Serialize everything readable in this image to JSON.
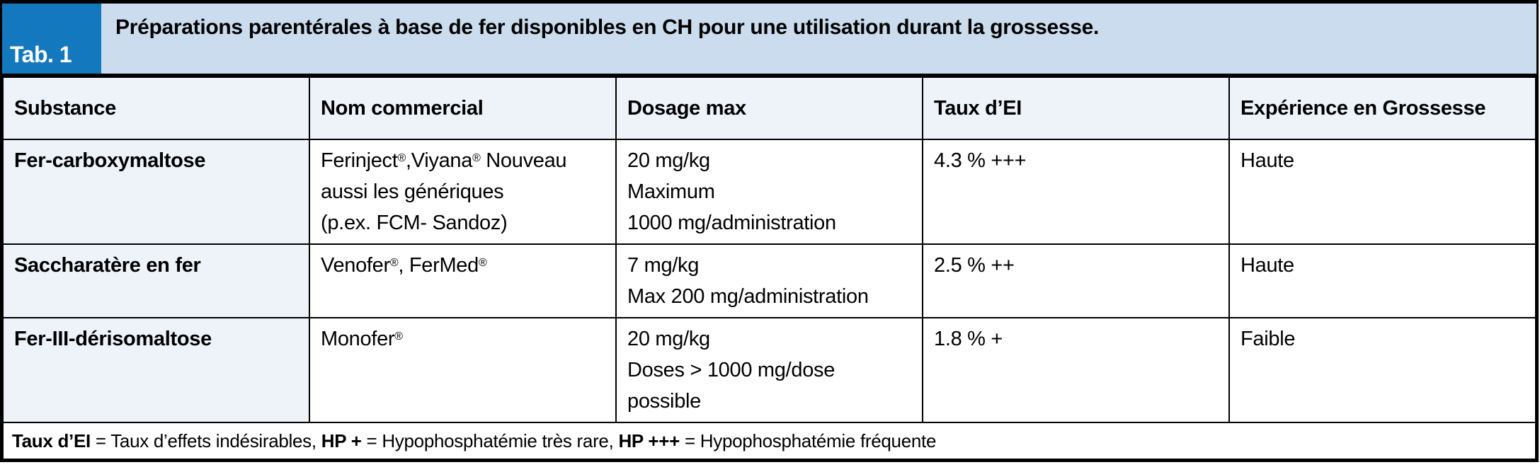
{
  "header": {
    "tab_label": "Tab. 1",
    "title": "Préparations parentérales à base de fer disponibles en CH pour une utilisation durant la grossesse."
  },
  "table": {
    "columns": [
      "Substance",
      "Nom commercial",
      "Dosage max",
      "Taux d’EI",
      "Expérience en Grossesse"
    ],
    "rows": [
      {
        "substance": "Fer-carboxymaltose",
        "nom_commercial": "Ferinject®,Viyana® Nouveau\naussi les génériques\n(p.ex. FCM- Sandoz)",
        "dosage_max": "20 mg/kg\nMaximum\n1000 mg/administration",
        "taux_ei": "4.3 % +++",
        "experience": "Haute"
      },
      {
        "substance": "Saccharatère en fer",
        "nom_commercial": "Venofer®, FerMed®",
        "dosage_max": "7 mg/kg\nMax 200 mg/administration",
        "taux_ei": "2.5 % ++",
        "experience": "Haute"
      },
      {
        "substance": "Fer-III-dérisomaltose",
        "nom_commercial": "Monofer®",
        "dosage_max": "20 mg/kg\nDoses > 1000 mg/dose\npossible",
        "taux_ei": "1.8 % +",
        "experience": "Faible"
      }
    ],
    "footnote": {
      "term1": "Taux d’EI",
      "def1": " = Taux d’effets indésirables, ",
      "term2": "HP +",
      "def2": " = Hypophosphatémie très rare, ",
      "term3": "HP +++",
      "def3": " = Hypophosphatémie fréquente"
    }
  },
  "colors": {
    "accent_blue": "#1478be",
    "title_band_blue": "#cadcee",
    "header_row_blue": "#eef2f9",
    "border_black": "#000000"
  }
}
